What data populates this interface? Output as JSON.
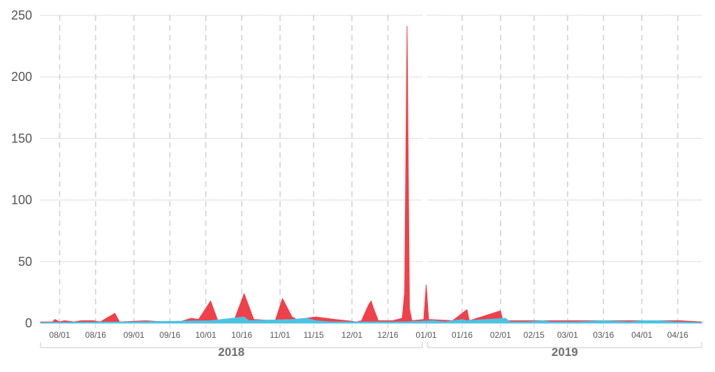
{
  "colors": {
    "series_a": "#f0404a",
    "series_b": "#4cc3e3",
    "grid_h": "#bdbdbd",
    "grid_v": "#d2d2d2",
    "tick_text": "#555555",
    "year_text": "#707070",
    "bracket": "#c8c8c8"
  },
  "chart_data": {
    "type": "area",
    "title": "",
    "xlabel": "",
    "ylabel": "",
    "x_range": [
      "2018-07-24",
      "2019-04-26"
    ],
    "ylim": [
      0,
      250
    ],
    "y_ticks": [
      "0",
      "50",
      "100",
      "150",
      "200",
      "250"
    ],
    "x_ticks": [
      {
        "date": "2018-08-01",
        "label": "08/01"
      },
      {
        "date": "2018-08-16",
        "label": "08/16"
      },
      {
        "date": "2018-09-01",
        "label": "09/01"
      },
      {
        "date": "2018-09-16",
        "label": "09/16"
      },
      {
        "date": "2018-10-01",
        "label": "10/01"
      },
      {
        "date": "2018-10-16",
        "label": "10/16"
      },
      {
        "date": "2018-11-01",
        "label": "11/01"
      },
      {
        "date": "2018-11-15",
        "label": "11/15"
      },
      {
        "date": "2018-12-01",
        "label": "12/01"
      },
      {
        "date": "2018-12-16",
        "label": "12/16"
      },
      {
        "date": "2019-01-01",
        "label": "01/01"
      },
      {
        "date": "2019-01-16",
        "label": "01/16"
      },
      {
        "date": "2019-02-01",
        "label": "02/01"
      },
      {
        "date": "2019-02-15",
        "label": "02/15"
      },
      {
        "date": "2019-03-01",
        "label": "03/01"
      },
      {
        "date": "2019-03-16",
        "label": "03/16"
      },
      {
        "date": "2019-04-01",
        "label": "04/01"
      },
      {
        "date": "2019-04-16",
        "label": "04/16"
      }
    ],
    "years": [
      {
        "label": "2018",
        "start": "2018-07-24",
        "end": "2018-12-31"
      },
      {
        "label": "2019",
        "start": "2019-01-01",
        "end": "2019-04-26"
      }
    ],
    "grid": true,
    "series": [
      {
        "color": "#f0404a",
        "baseline": 1,
        "points": [
          [
            "2018-07-29",
            1
          ],
          [
            "2018-07-30",
            3
          ],
          [
            "2018-07-31",
            2
          ],
          [
            "2018-08-01",
            1
          ],
          [
            "2018-08-03",
            2
          ],
          [
            "2018-08-07",
            1
          ],
          [
            "2018-08-10",
            2
          ],
          [
            "2018-08-13",
            2
          ],
          [
            "2018-08-15",
            2
          ],
          [
            "2018-08-18",
            1
          ],
          [
            "2018-08-24",
            8
          ],
          [
            "2018-08-26",
            1
          ],
          [
            "2018-09-06",
            2
          ],
          [
            "2018-09-14",
            1
          ],
          [
            "2018-09-20",
            1
          ],
          [
            "2018-09-25",
            4
          ],
          [
            "2018-09-28",
            3
          ],
          [
            "2018-10-03",
            18
          ],
          [
            "2018-10-06",
            2
          ],
          [
            "2018-10-13",
            3
          ],
          [
            "2018-10-17",
            24
          ],
          [
            "2018-10-21",
            3
          ],
          [
            "2018-10-30",
            2
          ],
          [
            "2018-11-02",
            20
          ],
          [
            "2018-11-06",
            5
          ],
          [
            "2018-11-08",
            3
          ],
          [
            "2018-11-16",
            5
          ],
          [
            "2018-11-24",
            3
          ],
          [
            "2018-11-29",
            2
          ],
          [
            "2018-12-03",
            1
          ],
          [
            "2018-12-05",
            2
          ],
          [
            "2018-12-08",
            15
          ],
          [
            "2018-12-09",
            18
          ],
          [
            "2018-12-10",
            12
          ],
          [
            "2018-12-12",
            2
          ],
          [
            "2018-12-18",
            2
          ],
          [
            "2018-12-22",
            4
          ],
          [
            "2018-12-23",
            25
          ],
          [
            "2018-12-24",
            241
          ],
          [
            "2018-12-25",
            12
          ],
          [
            "2018-12-26",
            2
          ],
          [
            "2018-12-31",
            3
          ],
          [
            "2019-01-01",
            31
          ],
          [
            "2019-01-02",
            3
          ],
          [
            "2019-01-12",
            2
          ],
          [
            "2019-01-18",
            11
          ],
          [
            "2019-01-19",
            2
          ],
          [
            "2019-02-01",
            10
          ],
          [
            "2019-02-02",
            2
          ],
          [
            "2019-03-18",
            2
          ],
          [
            "2019-04-17",
            2
          ]
        ]
      },
      {
        "color": "#4cc3e3",
        "baseline": 0.5,
        "points": [
          [
            "2018-09-01",
            1
          ],
          [
            "2018-10-03",
            2
          ],
          [
            "2018-10-17",
            5
          ],
          [
            "2018-10-19",
            2
          ],
          [
            "2018-11-06",
            3
          ],
          [
            "2018-11-12",
            4
          ],
          [
            "2018-11-16",
            2
          ],
          [
            "2018-11-22",
            1
          ],
          [
            "2018-11-29",
            1
          ],
          [
            "2018-12-23",
            1
          ],
          [
            "2019-01-04",
            2
          ],
          [
            "2019-01-09",
            1
          ],
          [
            "2019-01-16",
            3
          ],
          [
            "2019-01-18",
            2
          ],
          [
            "2019-02-03",
            4
          ],
          [
            "2019-02-05",
            1
          ],
          [
            "2019-02-12",
            1
          ],
          [
            "2019-02-19",
            2
          ],
          [
            "2019-02-22",
            1
          ],
          [
            "2019-03-05",
            1
          ],
          [
            "2019-03-16",
            2
          ],
          [
            "2019-03-27",
            1
          ],
          [
            "2019-04-01",
            2
          ],
          [
            "2019-04-08",
            2
          ],
          [
            "2019-04-15",
            1
          ]
        ]
      }
    ]
  }
}
